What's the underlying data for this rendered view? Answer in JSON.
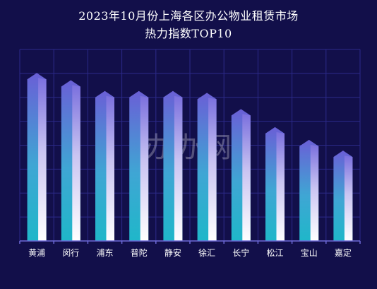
{
  "title_lines": [
    "2023年10月份上海各区办公物业租赁市场",
    "热力指数TOP10"
  ],
  "watermark": "办办网",
  "chart_data": {
    "type": "bar",
    "title": "2023年10月份上海各区办公物业租赁市场热力指数TOP10",
    "categories": [
      "黄浦",
      "闵行",
      "浦东",
      "普陀",
      "静安",
      "徐汇",
      "长宁",
      "松江",
      "宝山",
      "嘉定"
    ],
    "values": [
      93,
      89,
      83,
      83,
      83,
      82,
      73,
      63,
      56,
      50
    ],
    "ylim": [
      0,
      106
    ],
    "grid": true,
    "legend": "none",
    "colors": {
      "background": "#120f4a",
      "grid": "#2c2a8a",
      "axis": "#6e6ad8",
      "bar_top": "#6a5fd6",
      "bar_mid": "#3fa6d4",
      "bar_bottom": "#1fb7c9",
      "bar_highlight": "#ffffff",
      "label": "#ffffff"
    }
  }
}
